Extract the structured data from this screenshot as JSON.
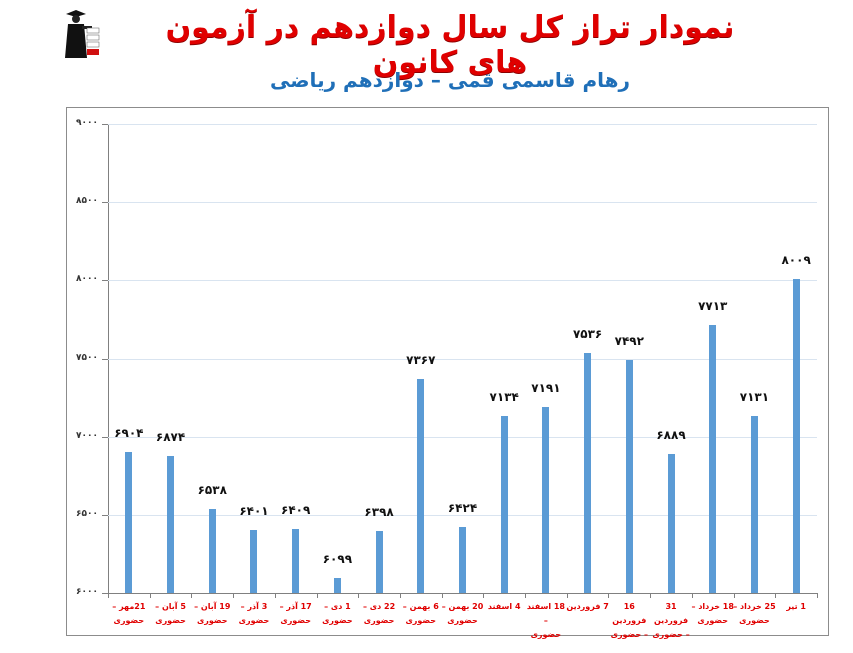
{
  "header": {
    "title": "نمودار تراز کل سال دوازدهم در آزمون های کانون",
    "subtitle": "رهام قاسمی قمی – دوازدهم ریاضی",
    "logo_icon": "kanoon-logo-icon"
  },
  "colors": {
    "title": "#e00000",
    "subtitle": "#1f6fb8",
    "bar": "#5b9bd5",
    "xlabel": "#e00000",
    "gridline": "#d9e4f0"
  },
  "chart_data": {
    "type": "bar",
    "title": "نمودار تراز کل سال دوازدهم در آزمون های کانون",
    "subtitle": "رهام قاسمی قمی – دوازدهم ریاضی",
    "xlabel": "",
    "ylabel": "",
    "ylim": [
      6000,
      9000
    ],
    "yticks": [
      6000,
      6500,
      7000,
      7500,
      8000,
      8500,
      9000
    ],
    "ytick_labels": [
      "۶۰۰۰",
      "۶۵۰۰",
      "۷۰۰۰",
      "۷۵۰۰",
      "۸۰۰۰",
      "۸۵۰۰",
      "۹۰۰۰"
    ],
    "grid": true,
    "legend": "none",
    "categories": [
      {
        "line1": "21مهر –",
        "line2": "حضوری"
      },
      {
        "line1": "5 آبان –",
        "line2": "حضوری"
      },
      {
        "line1": "19 آبان –",
        "line2": "حضوری"
      },
      {
        "line1": "3 آذر –",
        "line2": "حضوری"
      },
      {
        "line1": "17 آذر –",
        "line2": "حضوری"
      },
      {
        "line1": "1 دی –",
        "line2": "حضوری"
      },
      {
        "line1": "22 دی –",
        "line2": "حضوری"
      },
      {
        "line1": "6 بهمن –",
        "line2": "حضوری"
      },
      {
        "line1": "20 بهمن –",
        "line2": "حضوری"
      },
      {
        "line1": "4 اسفند",
        "line2": ""
      },
      {
        "line1": "18 اسفند –",
        "line2": "حضوری"
      },
      {
        "line1": "7 فروردین",
        "line2": ""
      },
      {
        "line1": "16 فروردین",
        "line2": "– حضوری"
      },
      {
        "line1": "31 فروردین",
        "line2": "– حضوری"
      },
      {
        "line1": "18 خرداد –",
        "line2": "حضوری"
      },
      {
        "line1": "25 خرداد –",
        "line2": "حضوری"
      },
      {
        "line1": "1 تیر",
        "line2": ""
      }
    ],
    "values": [
      6904,
      6874,
      6538,
      6401,
      6409,
      6099,
      6398,
      7367,
      6424,
      7134,
      7191,
      7536,
      7492,
      6889,
      7713,
      7131,
      8009
    ],
    "value_labels": [
      "۶۹۰۴",
      "۶۸۷۴",
      "۶۵۳۸",
      "۶۴۰۱",
      "۶۴۰۹",
      "۶۰۹۹",
      "۶۳۹۸",
      "۷۳۶۷",
      "۶۴۲۴",
      "۷۱۳۴",
      "۷۱۹۱",
      "۷۵۳۶",
      "۷۴۹۲",
      "۶۸۸۹",
      "۷۷۱۳",
      "۷۱۳۱",
      "۸۰۰۹"
    ]
  }
}
